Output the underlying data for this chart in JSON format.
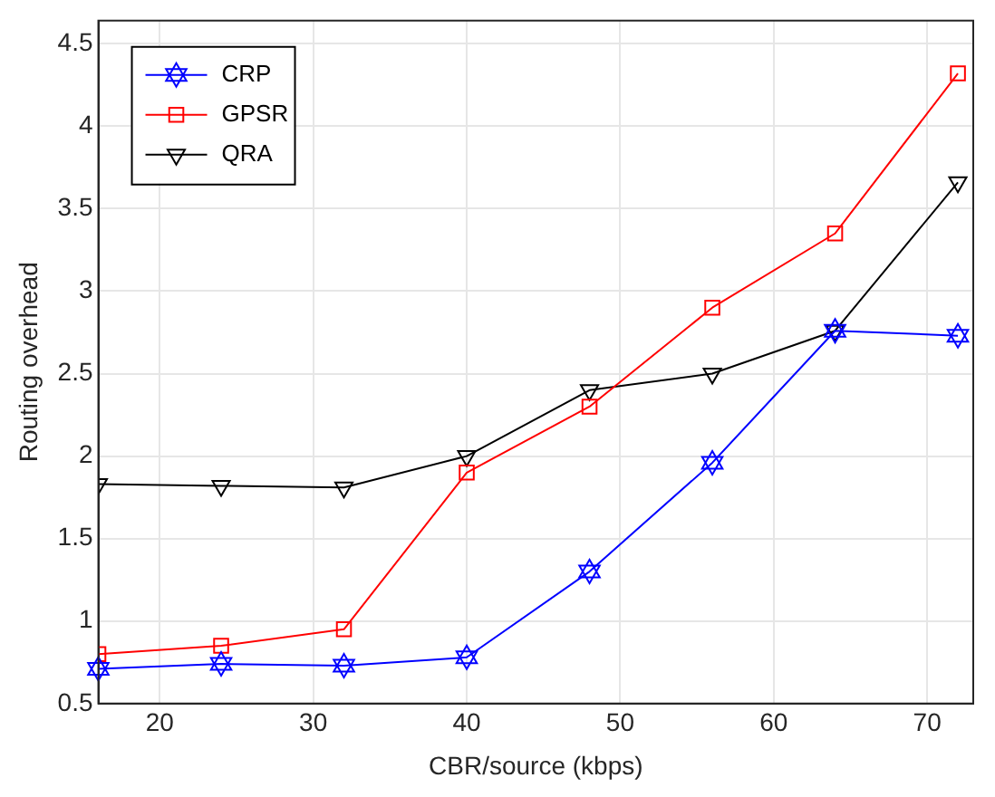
{
  "chart_data": {
    "type": "line",
    "xlabel": "CBR/source (kbps)",
    "ylabel": "Routing overhead",
    "x": [
      16,
      24,
      32,
      40,
      48,
      56,
      64,
      72
    ],
    "series": [
      {
        "name": "CRP",
        "color": "#0000ff",
        "marker": "star",
        "values": [
          0.71,
          0.74,
          0.73,
          0.78,
          1.3,
          1.96,
          2.76,
          2.73
        ]
      },
      {
        "name": "GPSR",
        "color": "#ff0000",
        "marker": "square",
        "values": [
          0.8,
          0.85,
          0.95,
          1.9,
          2.3,
          2.9,
          3.35,
          4.32
        ]
      },
      {
        "name": "QRA",
        "color": "#000000",
        "marker": "triangle",
        "values": [
          1.83,
          1.82,
          1.81,
          2.0,
          2.4,
          2.5,
          2.76,
          3.66
        ]
      }
    ],
    "xlim": [
      16,
      73
    ],
    "xticks": [
      20,
      30,
      40,
      50,
      60,
      70
    ],
    "ylim": [
      0.5,
      4.64
    ],
    "yticks": [
      0.5,
      1,
      1.5,
      2,
      2.5,
      3,
      3.5,
      4,
      4.5
    ],
    "grid": true,
    "legend": "top left",
    "line_style": "solid"
  }
}
